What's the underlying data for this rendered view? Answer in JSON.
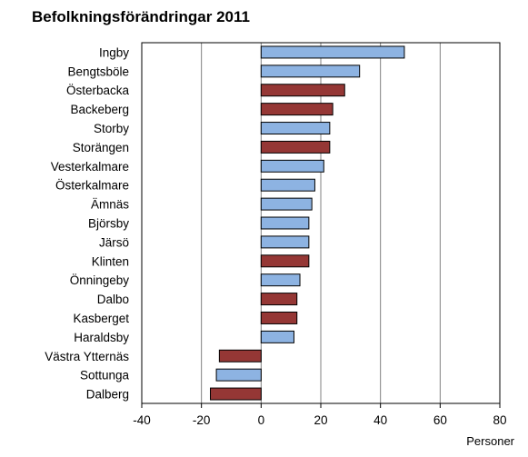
{
  "chart_data": {
    "type": "bar",
    "orientation": "horizontal",
    "title": "Befolkningsförändringar 2011",
    "xlabel": "Personer",
    "ylabel": "",
    "xlim": [
      -40,
      80
    ],
    "xticks": [
      -40,
      -20,
      0,
      20,
      40,
      60,
      80
    ],
    "grid": true,
    "legend": "none",
    "colors": {
      "blue": "#8db3e2",
      "red": "#953735",
      "border": "#000000",
      "grid": "#808080"
    },
    "categories": [
      "Ingby",
      "Bengtsböle",
      "Österbacka",
      "Backeberg",
      "Storby",
      "Storängen",
      "Vesterkalmare",
      "Österkalmare",
      "Ämnäs",
      "Björsby",
      "Järsö",
      "Klinten",
      "Önningeby",
      "Dalbo",
      "Kasberget",
      "Haraldsby",
      "Västra Ytternäs",
      "Sottunga",
      "Dalberg"
    ],
    "values": [
      48,
      33,
      28,
      24,
      23,
      23,
      21,
      18,
      17,
      16,
      16,
      16,
      13,
      12,
      12,
      11,
      -14,
      -15,
      -17
    ],
    "bar_colors": [
      "blue",
      "blue",
      "red",
      "red",
      "blue",
      "red",
      "blue",
      "blue",
      "blue",
      "blue",
      "blue",
      "red",
      "blue",
      "red",
      "red",
      "blue",
      "red",
      "blue",
      "red"
    ]
  }
}
